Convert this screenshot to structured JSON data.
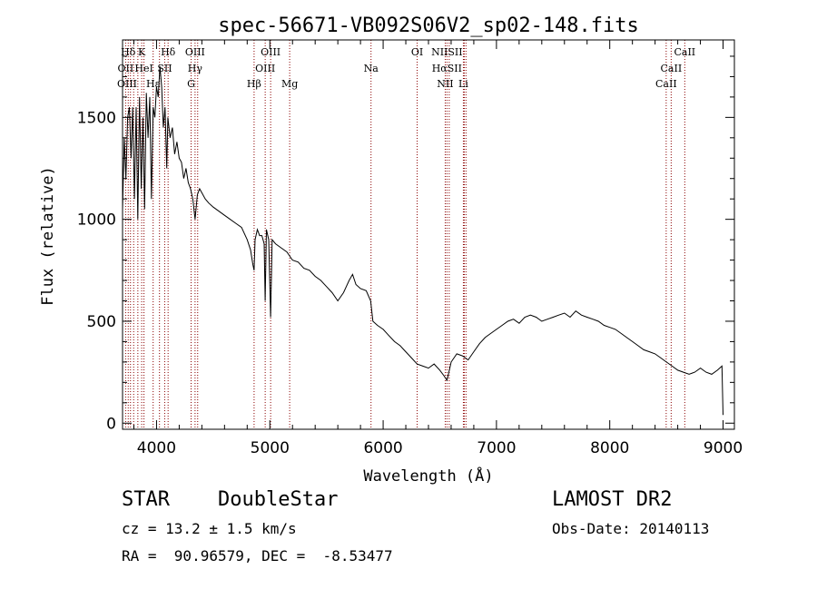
{
  "chart_data": {
    "type": "line",
    "title": "spec-56671-VB092S06V2_sp02-148.fits",
    "xlabel": "Wavelength (Å)",
    "ylabel": "Flux (relative)",
    "xlim": [
      3700,
      9100
    ],
    "ylim": [
      -30,
      1880
    ],
    "xticks": [
      4000,
      5000,
      6000,
      7000,
      8000,
      9000
    ],
    "yticks": [
      0,
      500,
      1000,
      1500
    ],
    "grid": false,
    "line_color": "#000000",
    "marker_color": "#8b0000",
    "series": [
      {
        "x": [
          3700,
          3715,
          3730,
          3745,
          3760,
          3775,
          3790,
          3805,
          3820,
          3835,
          3850,
          3865,
          3880,
          3895,
          3910,
          3925,
          3940,
          3955,
          3970,
          3985,
          4000,
          4015,
          4030,
          4045,
          4060,
          4075,
          4090,
          4100,
          4120,
          4140,
          4160,
          4180,
          4200,
          4220,
          4240,
          4260,
          4280,
          4300,
          4320,
          4340,
          4360,
          4380,
          4400,
          4430,
          4460,
          4500,
          4550,
          4600,
          4650,
          4700,
          4750,
          4800,
          4830,
          4850,
          4861,
          4870,
          4890,
          4910,
          4930,
          4950,
          4959,
          4970,
          4990,
          5007,
          5020,
          5050,
          5100,
          5150,
          5200,
          5250,
          5300,
          5350,
          5400,
          5450,
          5500,
          5550,
          5600,
          5650,
          5700,
          5730,
          5760,
          5800,
          5850,
          5890,
          5910,
          5950,
          6000,
          6050,
          6100,
          6150,
          6200,
          6250,
          6300,
          6350,
          6400,
          6450,
          6500,
          6540,
          6563,
          6580,
          6600,
          6650,
          6700,
          6750,
          6800,
          6850,
          6900,
          6950,
          7000,
          7050,
          7100,
          7150,
          7200,
          7250,
          7300,
          7350,
          7400,
          7450,
          7500,
          7550,
          7600,
          7650,
          7700,
          7750,
          7800,
          7850,
          7900,
          7950,
          8000,
          8050,
          8100,
          8150,
          8200,
          8250,
          8300,
          8350,
          8400,
          8450,
          8500,
          8550,
          8600,
          8650,
          8700,
          8750,
          8800,
          8850,
          8900,
          8950,
          8990,
          9000
        ],
        "y": [
          1050,
          1400,
          1200,
          1500,
          1550,
          1300,
          1550,
          1100,
          1550,
          1000,
          1600,
          1150,
          1500,
          1050,
          1620,
          1400,
          1600,
          1100,
          1550,
          1500,
          1650,
          1600,
          1750,
          1650,
          1450,
          1550,
          1250,
          1500,
          1400,
          1450,
          1320,
          1380,
          1300,
          1280,
          1200,
          1250,
          1180,
          1150,
          1100,
          1000,
          1120,
          1150,
          1130,
          1100,
          1080,
          1060,
          1040,
          1020,
          1000,
          980,
          960,
          900,
          850,
          780,
          750,
          900,
          950,
          920,
          920,
          880,
          600,
          950,
          900,
          520,
          900,
          880,
          860,
          840,
          800,
          790,
          760,
          750,
          720,
          700,
          670,
          640,
          600,
          640,
          700,
          730,
          680,
          660,
          650,
          600,
          500,
          480,
          460,
          430,
          400,
          380,
          350,
          320,
          290,
          280,
          270,
          290,
          260,
          230,
          210,
          250,
          300,
          340,
          330,
          310,
          350,
          390,
          420,
          440,
          460,
          480,
          500,
          510,
          490,
          520,
          530,
          520,
          500,
          510,
          520,
          530,
          540,
          520,
          550,
          530,
          520,
          510,
          500,
          480,
          470,
          460,
          440,
          420,
          400,
          380,
          360,
          350,
          340,
          320,
          300,
          280,
          260,
          250,
          240,
          250,
          270,
          250,
          240,
          260,
          280,
          40
        ]
      }
    ],
    "lines": [
      {
        "label": "Hδ",
        "x": 3750,
        "row": 0
      },
      {
        "label": "K",
        "x": 3869,
        "row": 0
      },
      {
        "label": "Hδ",
        "x": 4102,
        "row": 0
      },
      {
        "label": "OIII",
        "x": 4340,
        "row": 0
      },
      {
        "label": "OIII",
        "x": 5007,
        "row": 0
      },
      {
        "label": "OI",
        "x": 6300,
        "row": 0
      },
      {
        "label": "NIISII",
        "x": 6563,
        "row": 0
      },
      {
        "label": "CaII",
        "x": 8662,
        "row": 0
      },
      {
        "label": "OII",
        "x": 3727,
        "row": 1
      },
      {
        "label": "HeI",
        "x": 3889,
        "row": 1
      },
      {
        "label": "SII",
        "x": 4072,
        "row": 1
      },
      {
        "label": "Hγ",
        "x": 4340,
        "row": 1
      },
      {
        "label": "OIII",
        "x": 4959,
        "row": 1
      },
      {
        "label": "Na",
        "x": 5893,
        "row": 1
      },
      {
        "label": "HαSII",
        "x": 6563,
        "row": 1
      },
      {
        "label": "CaII",
        "x": 8542,
        "row": 1
      },
      {
        "label": "OIII",
        "x": 3740,
        "row": 2
      },
      {
        "label": "Hε",
        "x": 3970,
        "row": 2
      },
      {
        "label": "G",
        "x": 4305,
        "row": 2
      },
      {
        "label": "Hβ",
        "x": 4861,
        "row": 2
      },
      {
        "label": "Mg",
        "x": 5175,
        "row": 2
      },
      {
        "label": "NII",
        "x": 6548,
        "row": 2
      },
      {
        "label": "Li",
        "x": 6708,
        "row": 2
      },
      {
        "label": "CaII",
        "x": 8498,
        "row": 2
      }
    ],
    "marker_x": [
      3727,
      3750,
      3770,
      3798,
      3835,
      3869,
      3889,
      3970,
      4026,
      4072,
      4102,
      4305,
      4340,
      4363,
      4861,
      4959,
      5007,
      5175,
      5893,
      6300,
      6548,
      6563,
      6583,
      6708,
      6716,
      6731,
      8498,
      8542,
      8662
    ]
  },
  "info": {
    "class": "STAR",
    "subclass": "DoubleStar",
    "survey": "LAMOST DR2",
    "cz": "cz = 13.2 ± 1.5 km/s",
    "obs_date": "Obs-Date: 20140113",
    "radec": "RA =  90.96579, DEC =  -8.53477"
  }
}
